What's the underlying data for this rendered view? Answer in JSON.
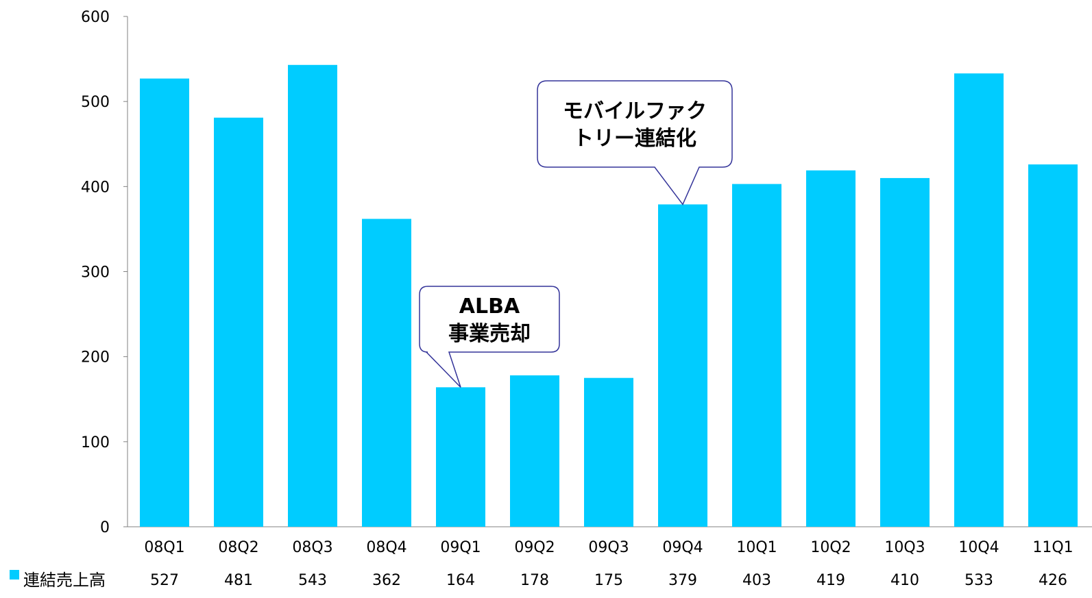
{
  "chart_data": {
    "type": "bar",
    "categories": [
      "08Q1",
      "08Q2",
      "08Q3",
      "08Q4",
      "09Q1",
      "09Q2",
      "09Q3",
      "09Q4",
      "10Q1",
      "10Q2",
      "10Q3",
      "10Q4",
      "11Q1"
    ],
    "series": [
      {
        "name": "連結売上高",
        "values": [
          527,
          481,
          543,
          362,
          164,
          178,
          175,
          379,
          403,
          419,
          410,
          533,
          426
        ]
      }
    ],
    "value_labels": [
      "527",
      "481",
      "543",
      "362",
      "164",
      "178",
      "175",
      "379",
      "403",
      "419",
      "410",
      "533",
      "426"
    ],
    "y_ticks": [
      "0",
      "100",
      "200",
      "300",
      "400",
      "500",
      "600"
    ],
    "ylim": [
      0,
      600
    ],
    "grid": false,
    "legend_position": "bottom-left",
    "bar_color": "#00CCFF",
    "axis_color": "#808080",
    "callout_border_color": "#333399",
    "annotations": [
      {
        "category": "09Q1",
        "lines": [
          "ALBA",
          "事業売却"
        ]
      },
      {
        "category": "09Q4",
        "lines": [
          "モバイルファク",
          "トリー連結化"
        ]
      }
    ]
  }
}
